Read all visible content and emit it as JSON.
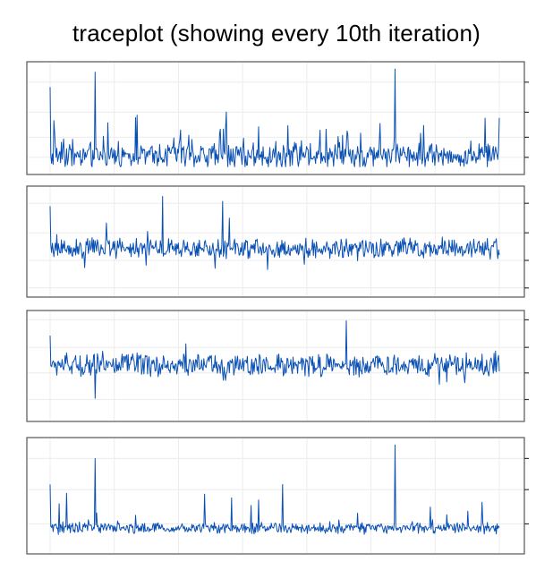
{
  "title": "traceplot (showing every 10th iteration)",
  "colors": {
    "trace": "#0a50b4",
    "frame": "#555555",
    "grid": "#ececec"
  },
  "chart_data": [
    {
      "type": "line",
      "title": "",
      "xlabel": "",
      "ylabel": "",
      "grid": true,
      "n_points": 600,
      "baseline": 0.12,
      "noise": 0.16,
      "spike_rate": 0.08,
      "spike_scale": 0.35,
      "big_spikes": [
        [
          60,
          0.95
        ],
        [
          460,
          0.98
        ]
      ],
      "start_jump": 0.8,
      "ylim": [
        0,
        1
      ],
      "yticks": [
        0.1,
        0.3,
        0.55,
        0.85
      ]
    },
    {
      "type": "line",
      "title": "",
      "xlabel": "",
      "ylabel": "",
      "grid": true,
      "n_points": 600,
      "baseline": 0.42,
      "noise": 0.13,
      "spike_rate": 0.05,
      "spike_scale": 0.3,
      "big_spikes": [
        [
          150,
          0.95
        ],
        [
          230,
          0.9
        ]
      ],
      "start_jump": 0.85,
      "ylim": [
        0,
        1
      ],
      "yticks": [
        0.02,
        0.3,
        0.58,
        0.88
      ]
    },
    {
      "type": "line",
      "title": "",
      "xlabel": "",
      "ylabel": "",
      "grid": true,
      "n_points": 600,
      "baseline": 0.5,
      "noise": 0.15,
      "spike_rate": 0.02,
      "spike_scale": 0.25,
      "big_spikes": [
        [
          395,
          0.95
        ]
      ],
      "start_jump": 0.8,
      "ylim": [
        0,
        1
      ],
      "yticks": [
        0.15,
        0.42,
        0.68,
        0.96
      ]
    },
    {
      "type": "line",
      "title": "",
      "xlabel": "",
      "ylabel": "",
      "grid": true,
      "n_points": 600,
      "baseline": 0.18,
      "noise": 0.07,
      "spike_rate": 0.03,
      "spike_scale": 0.3,
      "big_spikes": [
        [
          60,
          0.85
        ],
        [
          460,
          0.98
        ],
        [
          310,
          0.6
        ]
      ],
      "start_jump": 0.6,
      "ylim": [
        0,
        1
      ],
      "yticks": [
        0.22,
        0.55,
        0.85
      ]
    }
  ]
}
